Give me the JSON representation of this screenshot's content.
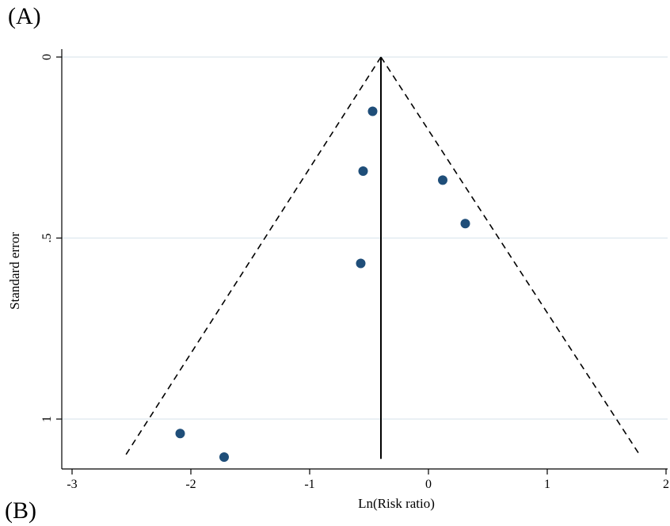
{
  "panel_labels": {
    "top": "(A)",
    "bottom": "(B)"
  },
  "chart_data": {
    "type": "scatter",
    "subtype": "funnel plot",
    "xlabel": "Ln(Risk ratio)",
    "ylabel": "Standard error",
    "xlim": [
      -3.05,
      2.0
    ],
    "ylim": [
      0,
      1.1
    ],
    "y_reversed": true,
    "x_ticks": [
      -3,
      -2,
      -1,
      0,
      1,
      2
    ],
    "y_ticks": [
      0,
      0.5,
      1
    ],
    "y_tick_labels": [
      "0",
      ".5",
      "1"
    ],
    "grid": "horizontal at y ticks",
    "pooled_estimate": -0.4,
    "funnel_limits": {
      "apex": [
        -0.4,
        0
      ],
      "lower_left": [
        -2.55,
        1.1
      ],
      "lower_right": [
        1.78,
        1.1
      ]
    },
    "points": [
      {
        "x": -0.47,
        "y": 0.15
      },
      {
        "x": -0.55,
        "y": 0.315
      },
      {
        "x": 0.12,
        "y": 0.34
      },
      {
        "x": 0.31,
        "y": 0.46
      },
      {
        "x": -0.57,
        "y": 0.57
      },
      {
        "x": -2.09,
        "y": 1.04
      },
      {
        "x": -1.72,
        "y": 1.105
      }
    ],
    "colors": {
      "point": "#1f4e79",
      "grid": "#dde8ee",
      "line": "#000000"
    }
  }
}
